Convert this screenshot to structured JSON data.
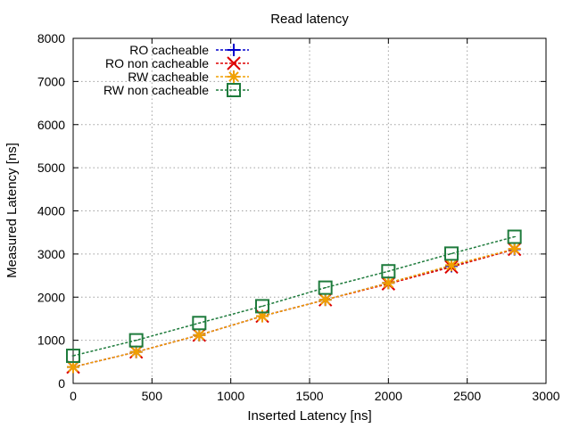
{
  "chart_data": {
    "type": "line",
    "title": "Read latency",
    "xlabel": "Inserted Latency [ns]",
    "ylabel": "Measured Latency [ns]",
    "xlim": [
      0,
      3000
    ],
    "ylim": [
      0,
      8000
    ],
    "xticks": [
      0,
      500,
      1000,
      1500,
      2000,
      2500,
      3000
    ],
    "yticks": [
      0,
      1000,
      2000,
      3000,
      4000,
      5000,
      6000,
      7000,
      8000
    ],
    "grid": true,
    "legend_position": "top-left",
    "x": [
      0,
      400,
      800,
      1200,
      1600,
      2000,
      2400,
      2800
    ],
    "series": [
      {
        "name": "RO cacheable",
        "color": "#0000cc",
        "marker": "plus",
        "values": [
          380,
          730,
          1120,
          1560,
          1940,
          2330,
          2720,
          3110
        ]
      },
      {
        "name": "RO non cacheable",
        "color": "#dd0000",
        "marker": "cross",
        "values": [
          380,
          730,
          1120,
          1560,
          1940,
          2310,
          2700,
          3110
        ]
      },
      {
        "name": "RW cacheable",
        "color": "#f0a000",
        "marker": "star",
        "values": [
          380,
          730,
          1120,
          1560,
          1940,
          2330,
          2740,
          3120
        ]
      },
      {
        "name": "RW non cacheable",
        "color": "#1e7b3c",
        "marker": "square",
        "values": [
          640,
          1000,
          1400,
          1790,
          2220,
          2600,
          3010,
          3400
        ]
      }
    ]
  }
}
